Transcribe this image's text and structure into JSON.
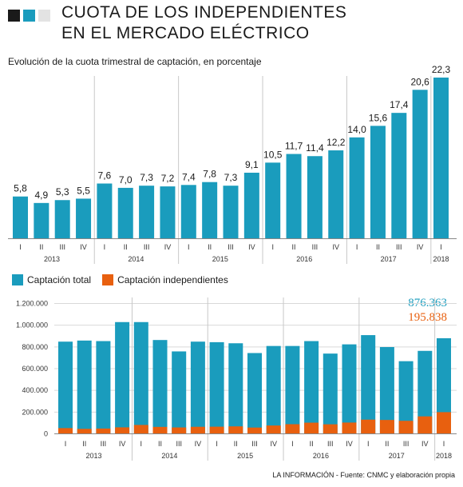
{
  "header": {
    "title_line1": "CUOTA DE LOS INDEPENDIENTES",
    "title_line2": "EN EL MERCADO ELÉCTRICO",
    "subtitle": "Evolución de la cuota trimestral de captación, en porcentaje",
    "square_colors": [
      "#1a1a1a",
      "#1a9cbd",
      "#e3e3e3"
    ]
  },
  "colors": {
    "total": "#1a9cbd",
    "independientes": "#e8600f",
    "axis": "#888888",
    "grid": "#d9d9d9"
  },
  "legend": {
    "total_label": "Captación total",
    "independientes_label": "Captación independientes"
  },
  "latest": {
    "total": "876.363",
    "independientes": "195.838"
  },
  "source": "LA INFORMACIÓN - Fuente: CNMC y elaboración propia",
  "chart_data": [
    {
      "type": "bar",
      "categories": [
        "I",
        "II",
        "III",
        "IV",
        "I",
        "II",
        "III",
        "IV",
        "I",
        "II",
        "III",
        "IV",
        "I",
        "II",
        "III",
        "IV",
        "I",
        "II",
        "III",
        "IV",
        "I"
      ],
      "years": [
        {
          "label": "2013",
          "start": 0,
          "count": 4
        },
        {
          "label": "2014",
          "start": 4,
          "count": 4
        },
        {
          "label": "2015",
          "start": 8,
          "count": 4
        },
        {
          "label": "2016",
          "start": 12,
          "count": 4
        },
        {
          "label": "2017",
          "start": 16,
          "count": 4
        },
        {
          "label": "2018",
          "start": 20,
          "count": 1
        }
      ],
      "values": [
        5.8,
        4.9,
        5.3,
        5.5,
        7.6,
        7.0,
        7.3,
        7.2,
        7.4,
        7.8,
        7.3,
        9.1,
        10.5,
        11.7,
        11.4,
        12.2,
        14.0,
        15.6,
        17.4,
        20.6,
        22.3
      ],
      "value_labels": [
        "5,8",
        "4,9",
        "5,3",
        "5,5",
        "7,6",
        "7,0",
        "7,3",
        "7,2",
        "7,4",
        "7,8",
        "7,3",
        "9,1",
        "10,5",
        "11,7",
        "11,4",
        "12,2",
        "14,0",
        "15,6",
        "17,4",
        "20,6",
        "22,3"
      ],
      "ylim": [
        0,
        22.3
      ],
      "title": "Evolución de la cuota trimestral de captación, en porcentaje"
    },
    {
      "type": "bar",
      "categories": [
        "I",
        "II",
        "III",
        "IV",
        "I",
        "II",
        "III",
        "IV",
        "I",
        "II",
        "III",
        "IV",
        "I",
        "II",
        "III",
        "IV",
        "I",
        "II",
        "III",
        "IV",
        "I"
      ],
      "years": [
        {
          "label": "2013",
          "start": 0,
          "count": 4
        },
        {
          "label": "2014",
          "start": 4,
          "count": 4
        },
        {
          "label": "2015",
          "start": 8,
          "count": 4
        },
        {
          "label": "2016",
          "start": 12,
          "count": 4
        },
        {
          "label": "2017",
          "start": 16,
          "count": 4
        },
        {
          "label": "2018",
          "start": 20,
          "count": 1
        }
      ],
      "series": [
        {
          "name": "Captación total",
          "values": [
            845000,
            855000,
            850000,
            1025000,
            1025000,
            860000,
            755000,
            845000,
            840000,
            830000,
            740000,
            805000,
            805000,
            850000,
            735000,
            820000,
            905000,
            795000,
            665000,
            760000,
            876363
          ]
        },
        {
          "name": "Captación independientes",
          "values": [
            49000,
            42000,
            45000,
            56000,
            78000,
            60000,
            55000,
            61000,
            62000,
            65000,
            54000,
            73000,
            85000,
            99000,
            84000,
            100000,
            127000,
            124000,
            116000,
            157000,
            195838
          ]
        }
      ],
      "yticks": [
        "0",
        "200.000",
        "400.000",
        "600.000",
        "800.000",
        "1.000.000",
        "1.200.000"
      ],
      "ylim": [
        0,
        1200000
      ],
      "grid": true
    }
  ]
}
